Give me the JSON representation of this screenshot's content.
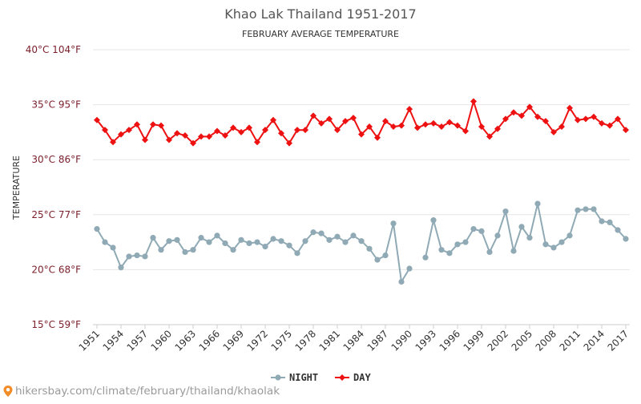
{
  "chart_data": {
    "type": "line",
    "title": "Khao Lak Thailand 1951-2017",
    "subtitle": "FEBRUARY AVERAGE TEMPERATURE",
    "ylabel": "TEMPERATURE",
    "ylim": [
      15,
      40
    ],
    "yticks": [
      {
        "value": 15,
        "label": "15°C 59°F"
      },
      {
        "value": 20,
        "label": "20°C 68°F"
      },
      {
        "value": 25,
        "label": "25°C 77°F"
      },
      {
        "value": 30,
        "label": "30°C 86°F"
      },
      {
        "value": 35,
        "label": "35°C 95°F"
      },
      {
        "value": 40,
        "label": "40°C 104°F"
      }
    ],
    "xlim": [
      1951,
      2017
    ],
    "xticks": [
      1951,
      1954,
      1957,
      1960,
      1963,
      1966,
      1969,
      1972,
      1975,
      1978,
      1981,
      1984,
      1987,
      1990,
      1993,
      1996,
      1999,
      2002,
      2005,
      2008,
      2011,
      2014,
      2017
    ],
    "grid": true,
    "legend_position": "bottom-center",
    "x": [
      1951,
      1952,
      1953,
      1954,
      1955,
      1956,
      1957,
      1958,
      1959,
      1960,
      1961,
      1962,
      1963,
      1964,
      1965,
      1966,
      1967,
      1968,
      1969,
      1970,
      1971,
      1972,
      1973,
      1974,
      1975,
      1976,
      1977,
      1978,
      1979,
      1980,
      1981,
      1982,
      1983,
      1984,
      1985,
      1986,
      1987,
      1988,
      1989,
      1990,
      1991,
      1992,
      1993,
      1994,
      1995,
      1996,
      1997,
      1998,
      1999,
      2000,
      2001,
      2002,
      2003,
      2004,
      2005,
      2006,
      2007,
      2008,
      2009,
      2010,
      2011,
      2012,
      2013,
      2014,
      2015,
      2016,
      2017
    ],
    "series": [
      {
        "name": "NIGHT",
        "color": "#90aab5",
        "values": [
          23.7,
          22.5,
          22.0,
          20.2,
          21.2,
          21.3,
          21.2,
          22.9,
          21.8,
          22.6,
          22.7,
          21.6,
          21.8,
          22.9,
          22.5,
          23.1,
          22.4,
          21.8,
          22.7,
          22.4,
          22.5,
          22.1,
          22.8,
          22.6,
          22.2,
          21.5,
          22.6,
          23.4,
          23.3,
          22.7,
          23.0,
          22.5,
          23.1,
          22.6,
          21.9,
          20.9,
          21.3,
          24.2,
          18.9,
          20.1,
          null,
          21.1,
          24.5,
          21.8,
          21.5,
          22.3,
          22.5,
          23.7,
          23.5,
          21.6,
          23.1,
          25.3,
          21.7,
          23.9,
          22.9,
          26.0,
          22.3,
          22.0,
          22.5,
          23.1,
          25.4,
          25.5,
          25.5,
          24.4,
          24.3,
          23.6,
          22.8
        ]
      },
      {
        "name": "DAY",
        "color": "#ee1111",
        "values": [
          33.6,
          32.7,
          31.6,
          32.3,
          32.7,
          33.2,
          31.8,
          33.2,
          33.1,
          31.8,
          32.4,
          32.2,
          31.5,
          32.1,
          32.1,
          32.6,
          32.2,
          32.9,
          32.5,
          32.9,
          31.6,
          32.7,
          33.6,
          32.4,
          31.5,
          32.7,
          32.7,
          34.0,
          33.3,
          33.7,
          32.7,
          33.5,
          33.8,
          32.3,
          33.0,
          32.0,
          33.5,
          33.0,
          33.1,
          34.6,
          32.9,
          33.2,
          33.3,
          33.0,
          33.4,
          33.1,
          32.6,
          35.3,
          33.0,
          32.1,
          32.8,
          33.7,
          34.3,
          34.0,
          34.8,
          33.9,
          33.5,
          32.5,
          33.0,
          34.7,
          33.6,
          33.7,
          33.9,
          33.3,
          33.1,
          33.7,
          32.7
        ]
      }
    ]
  },
  "source": {
    "text": "hikersbay.com/climate/february/thailand/khaolak",
    "pin_icon": "location-pin-icon"
  }
}
